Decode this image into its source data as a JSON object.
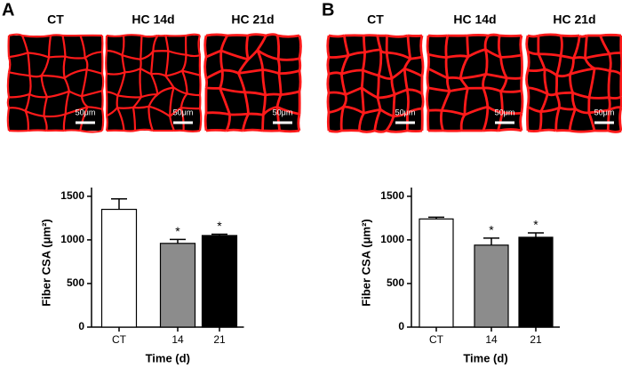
{
  "panels": [
    {
      "label": "A",
      "images": [
        {
          "title": "CT",
          "scale_bar": "50μm"
        },
        {
          "title": "HC 14d",
          "scale_bar": "50μm"
        },
        {
          "title": "HC 21d",
          "scale_bar": "50μm"
        }
      ]
    },
    {
      "label": "B",
      "images": [
        {
          "title": "CT",
          "scale_bar": "50μm"
        },
        {
          "title": "HC 14d",
          "scale_bar": "50μm"
        },
        {
          "title": "HC 21d",
          "scale_bar": "50μm"
        }
      ]
    }
  ],
  "chart_data": [
    {
      "type": "bar",
      "y_label": "Fiber CSA (μm²)",
      "x_label": "Time (d)",
      "categories": [
        "CT",
        "14",
        "21"
      ],
      "values": [
        1350,
        960,
        1050
      ],
      "errors": [
        120,
        45,
        15
      ],
      "colors": [
        "#ffffff",
        "#8c8c8c",
        "#000000"
      ],
      "annotations": [
        {
          "category": "14",
          "text": "*"
        },
        {
          "category": "21",
          "text": "*"
        }
      ],
      "ylim": [
        0,
        1600
      ],
      "yticks": [
        0,
        500,
        1000,
        1500
      ]
    },
    {
      "type": "bar",
      "y_label": "Fiber CSA (μm²)",
      "x_label": "Time (d)",
      "categories": [
        "CT",
        "14",
        "21"
      ],
      "values": [
        1240,
        940,
        1030
      ],
      "errors": [
        20,
        80,
        50
      ],
      "colors": [
        "#ffffff",
        "#8c8c8c",
        "#000000"
      ],
      "annotations": [
        {
          "category": "14",
          "text": "*"
        },
        {
          "category": "21",
          "text": "*"
        }
      ],
      "ylim": [
        0,
        1600
      ],
      "yticks": [
        0,
        500,
        1000,
        1500
      ]
    }
  ]
}
